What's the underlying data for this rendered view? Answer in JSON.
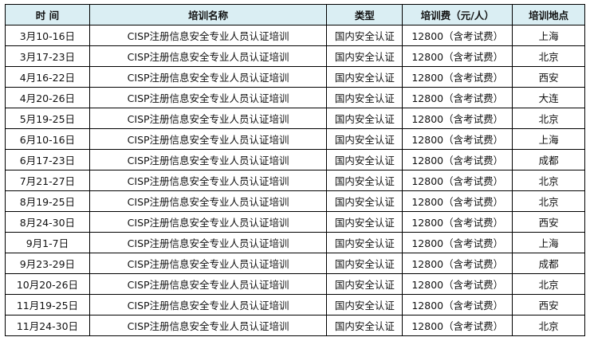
{
  "headers": [
    "时 间",
    "培训名称",
    "类型",
    "培训费（元/人）",
    "培训地点"
  ],
  "header_bg": "#daeef3",
  "rows": [
    [
      "3月10-16日",
      "CISP注册信息安全专业人员认证培训",
      "国内安全认证",
      "12800（含考试费）",
      "上海"
    ],
    [
      "3月17-23日",
      "CISP注册信息安全专业人员认证培训",
      "国内安全认证",
      "12800（含考试费）",
      "北京"
    ],
    [
      "4月16-22日",
      "CISP注册信息安全专业人员认证培训",
      "国内安全认证",
      "12800（含考试费）",
      "西安"
    ],
    [
      "4月20-26日",
      "CISP注册信息安全专业人员认证培训",
      "国内安全认证",
      "12800（含考试费）",
      "大连"
    ],
    [
      "5月19-25日",
      "CISP注册信息安全专业人员认证培训",
      "国内安全认证",
      "12800（含考试费）",
      "北京"
    ],
    [
      "6月10-16日",
      "CISP注册信息安全专业人员认证培训",
      "国内安全认证",
      "12800（含考试费）",
      "上海"
    ],
    [
      "6月17-23日",
      "CISP注册信息安全专业人员认证培训",
      "国内安全认证",
      "12800（含考试费）",
      "成都"
    ],
    [
      "7月21-27日",
      "CISP注册信息安全专业人员认证培训",
      "国内安全认证",
      "12800（含考试费）",
      "北京"
    ],
    [
      "8月19-25日",
      "CISP注册信息安全专业人员认证培训",
      "国内安全认证",
      "12800（含考试费）",
      "北京"
    ],
    [
      "8月24-30日",
      "CISP注册信息安全专业人员认证培训",
      "国内安全认证",
      "12800（含考试费）",
      "西安"
    ],
    [
      "9月1-7日",
      "CISP注册信息安全专业人员认证培训",
      "国内安全认证",
      "12800（含考试费）",
      "上海"
    ],
    [
      "9月23-29日",
      "CISP注册信息安全专业人员认证培训",
      "国内安全认证",
      "12800（含考试费）",
      "成都"
    ],
    [
      "10月20-26日",
      "CISP注册信息安全专业人员认证培训",
      "国内安全认证",
      "12800（含考试费）",
      "北京"
    ],
    [
      "11月19-25日",
      "CISP注册信息安全专业人员认证培训",
      "国内安全认证",
      "12800（含考试费）",
      "西安"
    ],
    [
      "11月24-30日",
      "CISP注册信息安全专业人员认证培训",
      "国内安全认证",
      "12800（含考试费）",
      "北京"
    ]
  ]
}
